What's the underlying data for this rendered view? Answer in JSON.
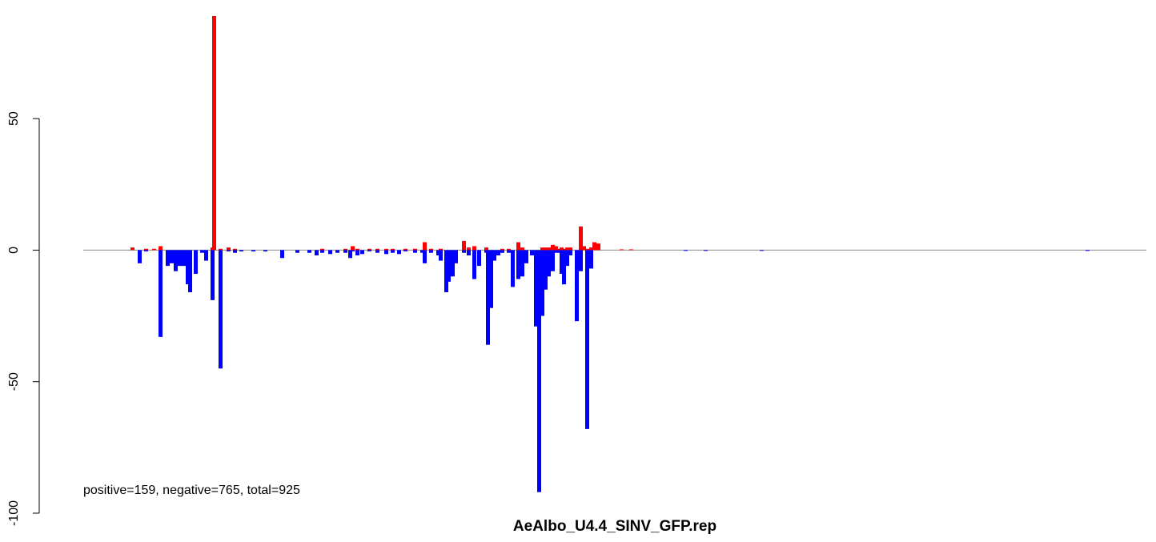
{
  "chart_data": {
    "type": "bar",
    "title": "AeAlbo_U4.4_SINV_GFP.rep",
    "annotation": "positive=159, negative=765, total=925",
    "x": [
      59,
      68,
      76,
      86,
      94,
      103,
      108,
      113,
      118,
      123,
      128,
      131,
      138,
      146,
      151,
      159,
      161,
      169,
      179,
      187,
      195,
      210,
      225,
      246,
      265,
      280,
      289,
      296,
      306,
      315,
      325,
      331,
      334,
      340,
      346,
      355,
      365,
      376,
      384,
      392,
      400,
      412,
      421,
      424,
      432,
      441,
      444,
      451,
      454,
      459,
      463,
      473,
      479,
      486,
      492,
      501,
      503,
      507,
      511,
      516,
      521,
      529,
      534,
      541,
      546,
      551,
      558,
      563,
      567,
      571,
      575,
      579,
      584,
      588,
      592,
      595,
      598,
      602,
      606,
      614,
      619,
      623,
      627,
      632,
      636,
      641,
      670,
      682,
      750,
      775,
      845,
      1252
    ],
    "series": [
      {
        "color": "#ff0000",
        "values": [
          1,
          0,
          0.5,
          0.5,
          1.5,
          0,
          0,
          0,
          0,
          0,
          0,
          0,
          0,
          0,
          0,
          1,
          89,
          0.5,
          1,
          0.5,
          0,
          0,
          0,
          0,
          0,
          0,
          0,
          0.5,
          0,
          0,
          0.5,
          0,
          1.5,
          0.5,
          0,
          0.5,
          0.5,
          0.5,
          0.5,
          0,
          0.5,
          0.5,
          0,
          3,
          0.5,
          0,
          0.5,
          0,
          0,
          0,
          0,
          3.5,
          1,
          1.5,
          0,
          1,
          0,
          0,
          0,
          0,
          0.5,
          0.5,
          0,
          3,
          1,
          0,
          0,
          0,
          0,
          1,
          1,
          1,
          2,
          1.5,
          0.5,
          1,
          0.5,
          1,
          1,
          0,
          9,
          1.5,
          0.5,
          1,
          3,
          2.5,
          0.3,
          0.3,
          0,
          0,
          0,
          0
        ]
      },
      {
        "color": "#0000ff",
        "values": [
          0,
          -5,
          -0.5,
          0,
          -33,
          -6,
          -5,
          -8,
          -6,
          -6,
          -13,
          -16,
          -9,
          -1,
          -4,
          -19,
          0,
          -45,
          -0.5,
          -1,
          -0.5,
          -0.5,
          -0.5,
          -3,
          -1,
          -1,
          -2,
          -1,
          -1.5,
          -1,
          -1,
          -3,
          -0.5,
          -2,
          -1.5,
          -0.5,
          -1,
          -1.5,
          -1,
          -1.5,
          -0.5,
          -1,
          -1,
          -5,
          -1,
          -2,
          -4,
          -16,
          -12,
          -10,
          -5,
          -1,
          -2,
          -11,
          -6,
          -1,
          -36,
          -22,
          -4,
          -2,
          -1,
          -1,
          -14,
          -11,
          -10,
          -5,
          -2,
          -29,
          -92,
          -25,
          -15,
          -10,
          -8,
          -1,
          -1,
          -9,
          -13,
          -6,
          -2,
          -27,
          -8,
          0,
          -68,
          -7,
          0,
          0,
          0,
          0,
          -0.3,
          -0.3,
          -0.3,
          -0.3
        ]
      }
    ],
    "xlim": [
      0,
      1328
    ],
    "ylim": [
      -100,
      89
    ],
    "yticks": [
      -100,
      -50,
      0,
      50
    ]
  }
}
